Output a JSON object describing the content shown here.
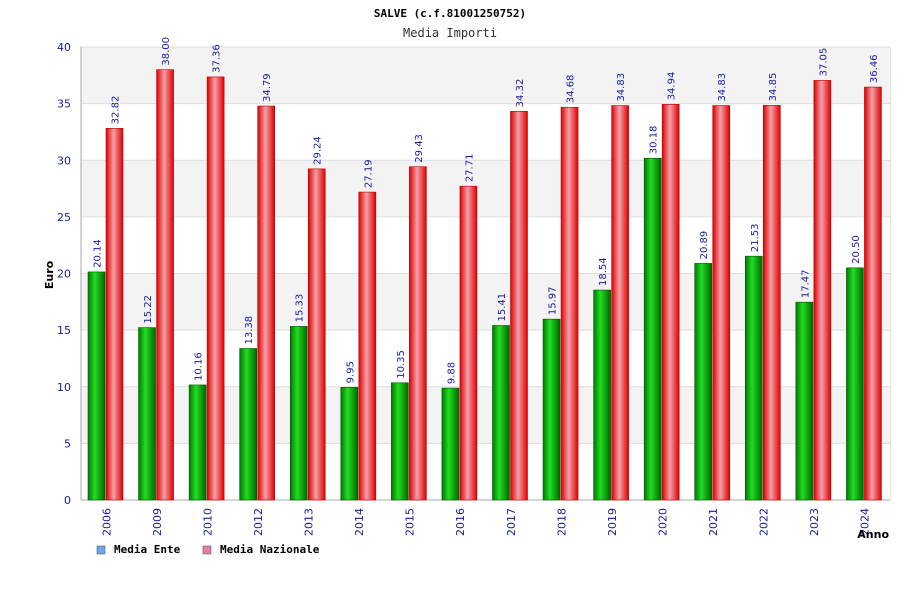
{
  "chart_data": {
    "type": "bar",
    "title": "SALVE (c.f.81001250752)",
    "subtitle": "Media Importi",
    "ylabel": "Euro",
    "xlabel": "Anno",
    "ylim": [
      0,
      40
    ],
    "yticks": [
      0,
      5,
      10,
      15,
      20,
      25,
      30,
      35,
      40
    ],
    "grid": true,
    "legend_position": "bottom-left",
    "categories": [
      "2006",
      "2009",
      "2010",
      "2012",
      "2013",
      "2014",
      "2015",
      "2016",
      "2017",
      "2018",
      "2019",
      "2020",
      "2021",
      "2022",
      "2023",
      "2024"
    ],
    "series": [
      {
        "name": "Media Ente",
        "color": "#00aa00",
        "legend_color": "#6fa8e8",
        "values": [
          20.14,
          15.22,
          10.16,
          13.38,
          15.33,
          9.95,
          10.35,
          9.88,
          15.41,
          15.97,
          18.54,
          30.18,
          20.89,
          21.53,
          17.47,
          20.5
        ],
        "labels": [
          "20.14",
          "15.22",
          "10.16",
          "13.38",
          "15.33",
          "9.95",
          "10.35",
          "9.88",
          "15.41",
          "15.97",
          "18.54",
          "30.18",
          "20.89",
          "21.53",
          "17.47",
          "20.50"
        ]
      },
      {
        "name": "Media Nazionale",
        "color": "#ee1111",
        "legend_color": "#e37fb0",
        "values": [
          32.82,
          38.0,
          37.36,
          34.79,
          29.24,
          27.19,
          29.43,
          27.71,
          34.32,
          34.68,
          34.83,
          34.94,
          34.83,
          34.85,
          37.05,
          36.46
        ],
        "labels": [
          "32.82",
          "38.00",
          "37.36",
          "34.79",
          "29.24",
          "27.19",
          "29.43",
          "27.71",
          "34.32",
          "34.68",
          "34.83",
          "34.94",
          "34.83",
          "34.85",
          "37.05",
          "36.46"
        ]
      }
    ]
  }
}
